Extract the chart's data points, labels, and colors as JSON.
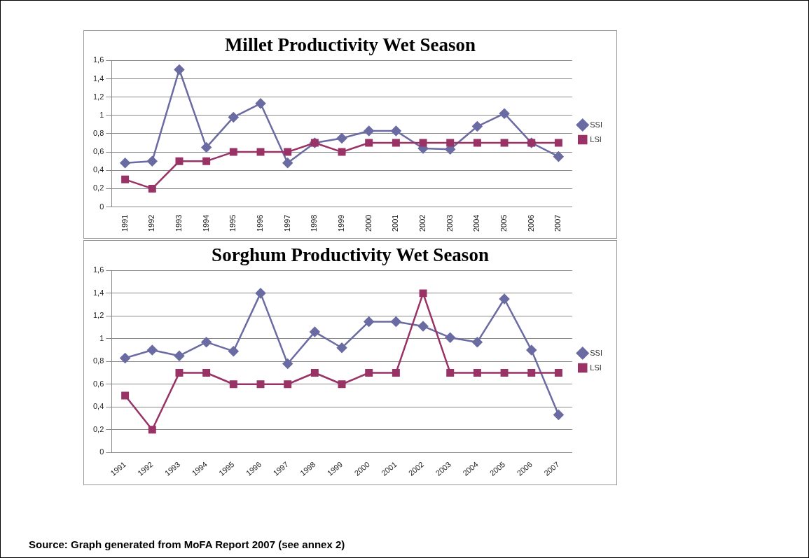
{
  "chart_data": [
    {
      "type": "line",
      "title": "Millet Productivity Wet Season",
      "categories": [
        "1991",
        "1992",
        "1993",
        "1994",
        "1995",
        "1996",
        "1997",
        "1998",
        "1999",
        "2000",
        "2001",
        "2002",
        "2003",
        "2004",
        "2005",
        "2006",
        "2007"
      ],
      "series": [
        {
          "name": "SSI",
          "color": "#6b6ba3",
          "marker": "diamond",
          "values": [
            0.48,
            0.5,
            1.5,
            0.65,
            0.98,
            1.13,
            0.48,
            0.7,
            0.75,
            0.83,
            0.83,
            0.64,
            0.63,
            0.88,
            1.02,
            0.7,
            0.55
          ]
        },
        {
          "name": "LSI",
          "color": "#993366",
          "marker": "square",
          "values": [
            0.3,
            0.2,
            0.5,
            0.5,
            0.6,
            0.6,
            0.6,
            0.7,
            0.6,
            0.7,
            0.7,
            0.7,
            0.7,
            0.7,
            0.7,
            0.7,
            0.7
          ]
        }
      ],
      "ylim": [
        0,
        1.6
      ],
      "yticks": [
        {
          "value": 0,
          "label": "0"
        },
        {
          "value": 0.2,
          "label": "0,2"
        },
        {
          "value": 0.4,
          "label": "0,4"
        },
        {
          "value": 0.6,
          "label": "0,6"
        },
        {
          "value": 0.8,
          "label": "0,8"
        },
        {
          "value": 1,
          "label": "1"
        },
        {
          "value": 1.2,
          "label": "1,2"
        },
        {
          "value": 1.4,
          "label": "1,4"
        },
        {
          "value": 1.6,
          "label": "1,6"
        }
      ],
      "grid": "y",
      "legend": "right"
    },
    {
      "type": "line",
      "title": "Sorghum Productivity Wet Season",
      "categories": [
        "1991",
        "1992",
        "1993",
        "1994",
        "1995",
        "1996",
        "1997",
        "1998",
        "1999",
        "2000",
        "2001",
        "2002",
        "2003",
        "2004",
        "2005",
        "2006",
        "2007"
      ],
      "series": [
        {
          "name": "SSI",
          "color": "#6b6ba3",
          "marker": "diamond",
          "values": [
            0.83,
            0.9,
            0.85,
            0.97,
            0.89,
            1.4,
            0.78,
            1.06,
            0.92,
            1.15,
            1.15,
            1.11,
            1.01,
            0.97,
            1.35,
            0.9,
            0.33
          ]
        },
        {
          "name": "LSI",
          "color": "#993366",
          "marker": "square",
          "values": [
            0.5,
            0.2,
            0.7,
            0.7,
            0.6,
            0.6,
            0.6,
            0.7,
            0.6,
            0.7,
            0.7,
            1.4,
            0.7,
            0.7,
            0.7,
            0.7,
            0.7
          ]
        }
      ],
      "ylim": [
        0,
        1.6
      ],
      "yticks": [
        {
          "value": 0,
          "label": "0"
        },
        {
          "value": 0.2,
          "label": "0,2"
        },
        {
          "value": 0.4,
          "label": "0,4"
        },
        {
          "value": 0.6,
          "label": "0,6"
        },
        {
          "value": 0.8,
          "label": "0,8"
        },
        {
          "value": 1,
          "label": "1"
        },
        {
          "value": 1.2,
          "label": "1,2"
        },
        {
          "value": 1.4,
          "label": "1,4"
        },
        {
          "value": 1.6,
          "label": "1,6"
        }
      ],
      "grid": "y",
      "legend": "right",
      "annotations": [
        "Source: Graph generated from MoFA Report 2007 (see annex 2)"
      ]
    }
  ]
}
